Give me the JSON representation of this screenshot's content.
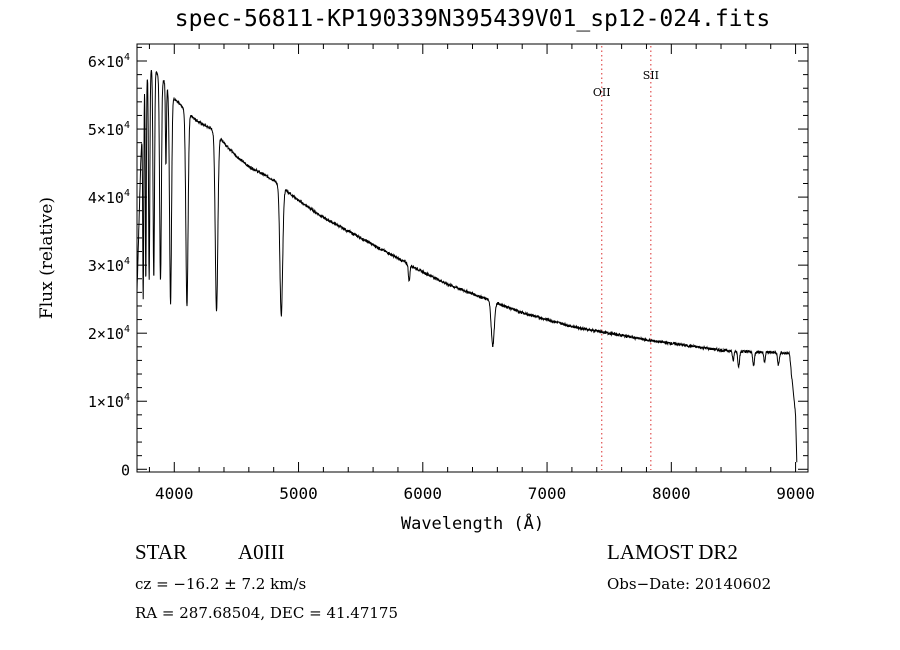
{
  "chart_data": {
    "type": "line",
    "title": "spec-56811-KP190339N395439V01_sp12-024.fits",
    "xlabel": "Wavelength (Å)",
    "ylabel": "Flux (relative)",
    "xlim": [
      3700,
      9100
    ],
    "ylim": [
      -400,
      62500
    ],
    "x_ticks": [
      4000,
      5000,
      6000,
      7000,
      8000,
      9000
    ],
    "y_ticks": [
      {
        "value": 0,
        "label": "0"
      },
      {
        "value": 10000,
        "label": "1×10^4"
      },
      {
        "value": 20000,
        "label": "2×10^4"
      },
      {
        "value": 30000,
        "label": "3×10^4"
      },
      {
        "value": 40000,
        "label": "4×10^4"
      },
      {
        "value": 50000,
        "label": "5×10^4"
      },
      {
        "value": 60000,
        "label": "6×10^4"
      }
    ],
    "grid": false,
    "series": [
      {
        "continuum": [
          [
            3700,
            26000
          ],
          [
            3730,
            45000
          ],
          [
            3760,
            57000
          ],
          [
            3800,
            59000
          ],
          [
            3850,
            58500
          ],
          [
            3900,
            57500
          ],
          [
            3950,
            56000
          ],
          [
            4000,
            54500
          ],
          [
            4050,
            53500
          ],
          [
            4100,
            52500
          ],
          [
            4200,
            51000
          ],
          [
            4300,
            50000
          ],
          [
            4400,
            48000
          ],
          [
            4500,
            46000
          ],
          [
            4600,
            44500
          ],
          [
            4700,
            43500
          ],
          [
            4800,
            42500
          ],
          [
            4900,
            41000
          ],
          [
            5000,
            39500
          ],
          [
            5200,
            37000
          ],
          [
            5400,
            35000
          ],
          [
            5600,
            33000
          ],
          [
            5800,
            31000
          ],
          [
            6000,
            29000
          ],
          [
            6200,
            27200
          ],
          [
            6400,
            25800
          ],
          [
            6600,
            24400
          ],
          [
            6800,
            23000
          ],
          [
            7000,
            22000
          ],
          [
            7200,
            21000
          ],
          [
            7400,
            20300
          ],
          [
            7600,
            19700
          ],
          [
            7800,
            19000
          ],
          [
            8000,
            18500
          ],
          [
            8200,
            18000
          ],
          [
            8400,
            17500
          ],
          [
            8600,
            17300
          ],
          [
            8800,
            17200
          ],
          [
            8950,
            17000
          ],
          [
            9000,
            8000
          ],
          [
            9010,
            1000
          ]
        ],
        "absorption_lines": [
          {
            "center": 3750,
            "depth": 28000,
            "width": 4
          },
          {
            "center": 3771,
            "depth": 30000,
            "width": 4
          },
          {
            "center": 3798,
            "depth": 31000,
            "width": 5
          },
          {
            "center": 3835,
            "depth": 30500,
            "width": 6
          },
          {
            "center": 3889,
            "depth": 30000,
            "width": 7
          },
          {
            "center": 3933,
            "depth": 12000,
            "width": 4
          },
          {
            "center": 3970,
            "depth": 31000,
            "width": 8
          },
          {
            "center": 4102,
            "depth": 28500,
            "width": 9
          },
          {
            "center": 4340,
            "depth": 26000,
            "width": 10
          },
          {
            "center": 4861,
            "depth": 19000,
            "width": 11
          },
          {
            "center": 5890,
            "depth": 2500,
            "width": 6
          },
          {
            "center": 6563,
            "depth": 6500,
            "width": 12
          },
          {
            "center": 8498,
            "depth": 1500,
            "width": 6
          },
          {
            "center": 8542,
            "depth": 2200,
            "width": 7
          },
          {
            "center": 8662,
            "depth": 2000,
            "width": 7
          },
          {
            "center": 8750,
            "depth": 1400,
            "width": 6
          },
          {
            "center": 8862,
            "depth": 1800,
            "width": 7
          }
        ]
      }
    ],
    "annotations": [
      {
        "label": "OII",
        "x": 7440
      },
      {
        "label": "SII",
        "x": 7835
      }
    ]
  },
  "info": {
    "object_class": "STAR",
    "subclass": "A0III",
    "cz": "cz = −16.2 ± 7.2 km/s",
    "radec": "RA = 287.68504, DEC =  41.47175",
    "survey": "LAMOST DR2",
    "obs_date": "Obs−Date: 20140602"
  },
  "colors": {
    "spectrum": "#000000",
    "marker_lines": "#e05050",
    "axes": "#000000"
  }
}
